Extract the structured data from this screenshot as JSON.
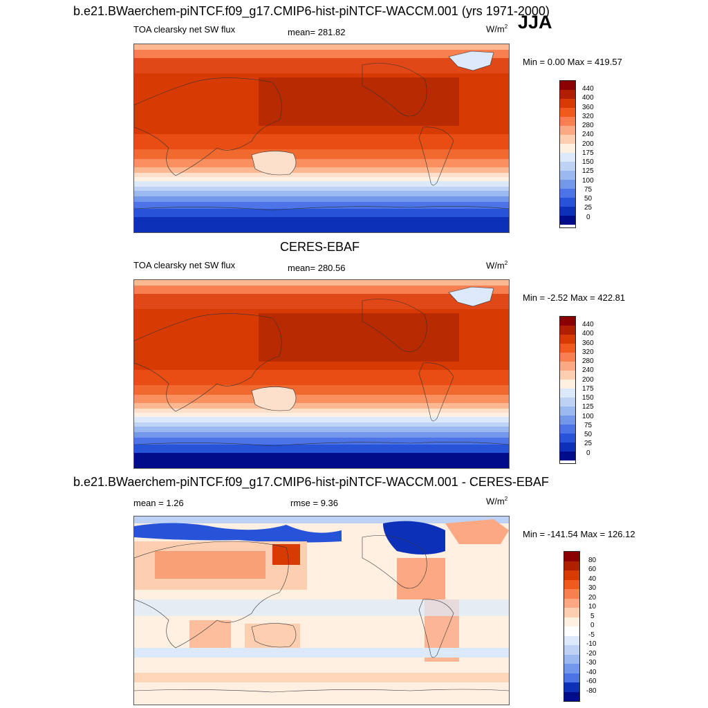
{
  "season": "JJA",
  "panels": [
    {
      "title": "b.e21.BWaerchem-piNTCF.f09_g17.CMIP6-hist-piNTCF-WACCM.001 (yrs 1971-2000)",
      "variable": "TOA clearsky net SW flux",
      "mean": "mean= 281.82",
      "units": "W/m",
      "units_sup": "2",
      "minmax": "Min =   0.00 Max = 419.57",
      "colorbar_labels": [
        "440",
        "400",
        "360",
        "320",
        "280",
        "240",
        "200",
        "175",
        "150",
        "125",
        "100",
        "75",
        "50",
        "25",
        "0"
      ],
      "colorbar_colors": [
        "#8b0000",
        "#b02000",
        "#d83a04",
        "#f05a1c",
        "#f88050",
        "#fca882",
        "#fdcfb0",
        "#fff0e2",
        "#dbe9fb",
        "#bdd2f5",
        "#9bb9f0",
        "#7397eb",
        "#4c74e6",
        "#2653d8",
        "#0d30b8",
        "#000c8a"
      ]
    },
    {
      "title": "CERES-EBAF",
      "variable": "TOA clearsky net SW flux",
      "mean": "mean= 280.56",
      "units": "W/m",
      "units_sup": "2",
      "minmax": "Min =  -2.52 Max = 422.81",
      "colorbar_labels": [
        "440",
        "400",
        "360",
        "320",
        "280",
        "240",
        "200",
        "175",
        "150",
        "125",
        "100",
        "75",
        "50",
        "25",
        "0"
      ],
      "colorbar_colors": [
        "#8b0000",
        "#b02000",
        "#d83a04",
        "#f05a1c",
        "#f88050",
        "#fca882",
        "#fdcfb0",
        "#fff0e2",
        "#dbe9fb",
        "#bdd2f5",
        "#9bb9f0",
        "#7397eb",
        "#4c74e6",
        "#2653d8",
        "#0d30b8",
        "#000c8a"
      ]
    },
    {
      "title": "b.e21.BWaerchem-piNTCF.f09_g17.CMIP6-hist-piNTCF-WACCM.001 - CERES-EBAF",
      "mean": "mean =    1.26",
      "rmse": "rmse =    9.36",
      "units": "W/m",
      "units_sup": "2",
      "minmax": "Min = -141.54 Max = 126.12",
      "colorbar_labels": [
        "80",
        "60",
        "40",
        "30",
        "20",
        "10",
        "5",
        "0",
        "-5",
        "-10",
        "-20",
        "-30",
        "-40",
        "-60",
        "-80"
      ],
      "colorbar_colors": [
        "#8b0000",
        "#b02000",
        "#d83a04",
        "#f05a1c",
        "#f88050",
        "#fca882",
        "#fdcfb0",
        "#fff0e2",
        "#ffffff",
        "#dbe9fb",
        "#bdd2f5",
        "#9bb9f0",
        "#7397eb",
        "#4c74e6",
        "#0d30b8",
        "#000c8a"
      ]
    }
  ]
}
